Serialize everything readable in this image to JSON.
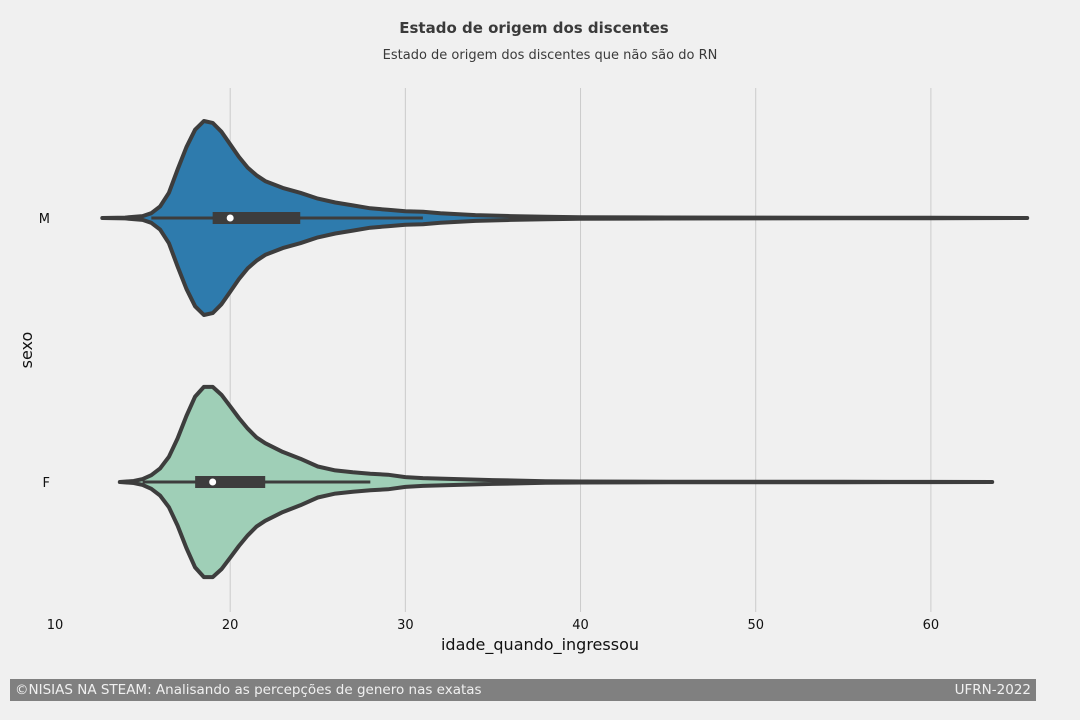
{
  "chart_data": {
    "type": "violin",
    "title": "Estado de origem dos discentes",
    "subtitle": "Estado de origem dos discentes que não são do RN",
    "xlabel": "idade_quando_ingressou",
    "ylabel": "sexo",
    "xlim": [
      10,
      66
    ],
    "xticks": [
      10,
      20,
      30,
      40,
      50,
      60
    ],
    "grid": "vertical",
    "series": [
      {
        "name": "M",
        "color": "#2e7bad",
        "min": 12.7,
        "max": 65.5,
        "q1": 19,
        "median": 20,
        "q3": 24,
        "whisker_low": 15.5,
        "whisker_high": 31,
        "density": [
          [
            12.7,
            0
          ],
          [
            14,
            0.004
          ],
          [
            15,
            0.02
          ],
          [
            15.5,
            0.05
          ],
          [
            16,
            0.12
          ],
          [
            16.5,
            0.26
          ],
          [
            17,
            0.5
          ],
          [
            17.5,
            0.73
          ],
          [
            18,
            0.91
          ],
          [
            18.5,
            1.0
          ],
          [
            19,
            0.98
          ],
          [
            19.5,
            0.89
          ],
          [
            20,
            0.76
          ],
          [
            20.5,
            0.63
          ],
          [
            21,
            0.52
          ],
          [
            21.5,
            0.44
          ],
          [
            22,
            0.38
          ],
          [
            23,
            0.31
          ],
          [
            24,
            0.26
          ],
          [
            25,
            0.2
          ],
          [
            26,
            0.16
          ],
          [
            27,
            0.13
          ],
          [
            28,
            0.1
          ],
          [
            29,
            0.085
          ],
          [
            30,
            0.07
          ],
          [
            31,
            0.065
          ],
          [
            32,
            0.05
          ],
          [
            34,
            0.03
          ],
          [
            36,
            0.02
          ],
          [
            38,
            0.012
          ],
          [
            40,
            0.008
          ],
          [
            45,
            0.005
          ],
          [
            50,
            0.004
          ],
          [
            55,
            0.003
          ],
          [
            60,
            0.002
          ],
          [
            65.5,
            0
          ]
        ]
      },
      {
        "name": "F",
        "color": "#9fcfb7",
        "min": 13.7,
        "max": 63.5,
        "q1": 18,
        "median": 19,
        "q3": 22,
        "whisker_low": 15,
        "whisker_high": 28,
        "density": [
          [
            13.7,
            0
          ],
          [
            14.5,
            0.01
          ],
          [
            15,
            0.03
          ],
          [
            15.5,
            0.07
          ],
          [
            16,
            0.14
          ],
          [
            16.5,
            0.26
          ],
          [
            17,
            0.45
          ],
          [
            17.5,
            0.68
          ],
          [
            18,
            0.88
          ],
          [
            18.5,
            0.98
          ],
          [
            19,
            0.98
          ],
          [
            19.5,
            0.9
          ],
          [
            20,
            0.78
          ],
          [
            20.5,
            0.66
          ],
          [
            21,
            0.55
          ],
          [
            21.5,
            0.46
          ],
          [
            22,
            0.4
          ],
          [
            23,
            0.31
          ],
          [
            24,
            0.24
          ],
          [
            25,
            0.16
          ],
          [
            26,
            0.12
          ],
          [
            27,
            0.1
          ],
          [
            28,
            0.085
          ],
          [
            29,
            0.075
          ],
          [
            30,
            0.05
          ],
          [
            31,
            0.04
          ],
          [
            33,
            0.03
          ],
          [
            35,
            0.02
          ],
          [
            38,
            0.008
          ],
          [
            40,
            0.005
          ],
          [
            45,
            0.003
          ],
          [
            50,
            0.002
          ],
          [
            55,
            0.002
          ],
          [
            60,
            0.001
          ],
          [
            63.5,
            0
          ]
        ]
      }
    ]
  },
  "footer": {
    "left": "©NISIAS NA STEAM: Analisando as percepções de genero nas exatas",
    "right": "UFRN-2022"
  }
}
